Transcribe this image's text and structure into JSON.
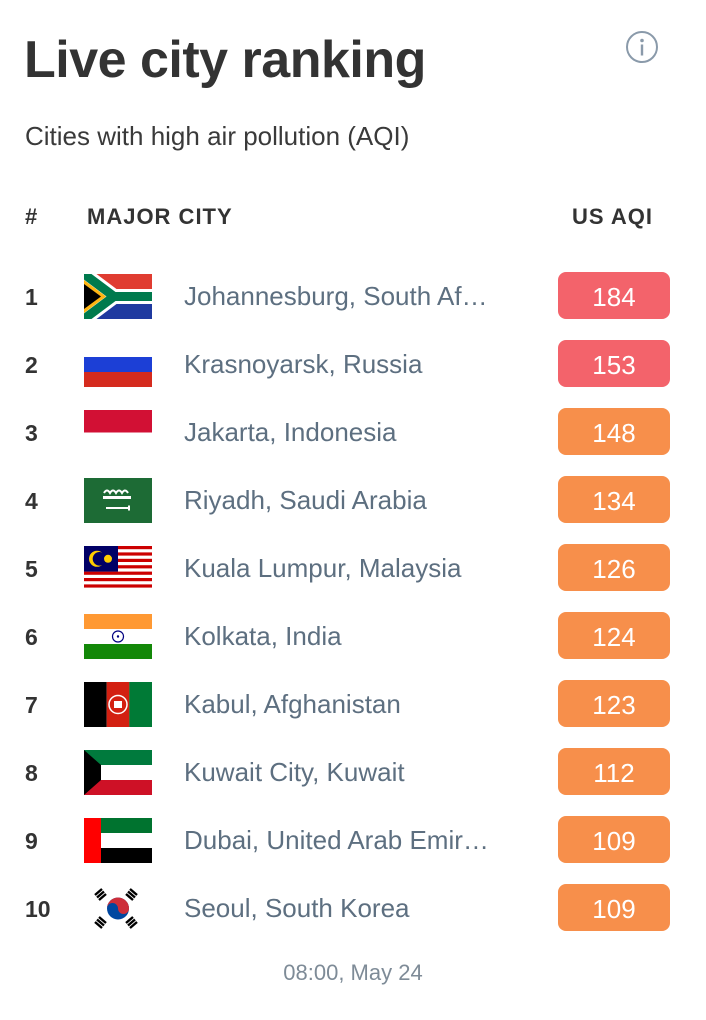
{
  "header": {
    "title": "Live city ranking",
    "subtitle": "Cities with high air pollution (AQI)",
    "info_icon": "info-circle-icon"
  },
  "table": {
    "columns": {
      "rank": "#",
      "city": "MAJOR CITY",
      "aqi": "US AQI"
    },
    "rows": [
      {
        "rank": "1",
        "flag": "south-africa",
        "city": "Johannesburg, South Af…",
        "aqi": "184",
        "color": "#f3636b"
      },
      {
        "rank": "2",
        "flag": "russia",
        "city": "Krasnoyarsk, Russia",
        "aqi": "153",
        "color": "#f3636b"
      },
      {
        "rank": "3",
        "flag": "indonesia",
        "city": "Jakarta, Indonesia",
        "aqi": "148",
        "color": "#f78f4b"
      },
      {
        "rank": "4",
        "flag": "saudi-arabia",
        "city": "Riyadh, Saudi Arabia",
        "aqi": "134",
        "color": "#f78f4b"
      },
      {
        "rank": "5",
        "flag": "malaysia",
        "city": "Kuala Lumpur, Malaysia",
        "aqi": "126",
        "color": "#f78f4b"
      },
      {
        "rank": "6",
        "flag": "india",
        "city": "Kolkata, India",
        "aqi": "124",
        "color": "#f78f4b"
      },
      {
        "rank": "7",
        "flag": "afghanistan",
        "city": "Kabul, Afghanistan",
        "aqi": "123",
        "color": "#f78f4b"
      },
      {
        "rank": "8",
        "flag": "kuwait",
        "city": "Kuwait City, Kuwait",
        "aqi": "112",
        "color": "#f78f4b"
      },
      {
        "rank": "9",
        "flag": "uae",
        "city": "Dubai, United Arab Emir…",
        "aqi": "109",
        "color": "#f78f4b"
      },
      {
        "rank": "10",
        "flag": "south-korea",
        "city": "Seoul, South Korea",
        "aqi": "109",
        "color": "#f78f4b"
      }
    ]
  },
  "footer": {
    "timestamp": "08:00, May 24"
  }
}
